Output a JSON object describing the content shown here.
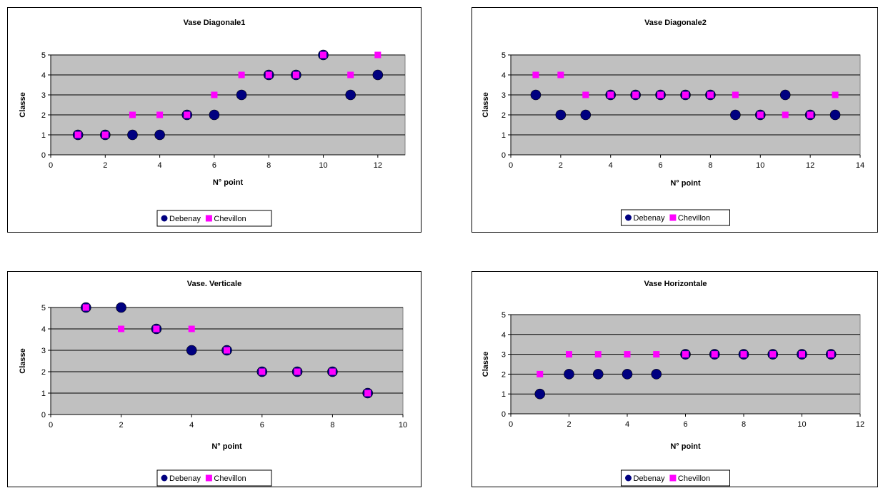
{
  "colors": {
    "plot_bg": "#C0C0C0",
    "series_debenay": "#000080",
    "series_chevillon": "#FF00FF",
    "grid": "#000000"
  },
  "chart_data": [
    {
      "type": "scatter",
      "title": "Vase Diagonale1",
      "xlabel": "N° point",
      "ylabel": "Classe",
      "xlim": [
        0,
        13
      ],
      "ylim": [
        0,
        5
      ],
      "xticks": [
        0,
        2,
        4,
        6,
        8,
        10,
        12
      ],
      "yticks": [
        0,
        1,
        2,
        3,
        4,
        5
      ],
      "grid": "horizontal",
      "legend_position": "bottom",
      "series": [
        {
          "name": "Debenay",
          "marker": "circle",
          "x": [
            1,
            2,
            3,
            4,
            5,
            6,
            7,
            8,
            9,
            10,
            11,
            12
          ],
          "y": [
            1,
            1,
            1,
            1,
            2,
            2,
            3,
            4,
            4,
            5,
            3,
            4
          ]
        },
        {
          "name": "Chevillon",
          "marker": "square",
          "x": [
            1,
            2,
            3,
            4,
            5,
            6,
            7,
            8,
            9,
            10,
            11,
            12
          ],
          "y": [
            1,
            1,
            2,
            2,
            2,
            3,
            4,
            4,
            4,
            5,
            4,
            5
          ]
        }
      ]
    },
    {
      "type": "scatter",
      "title": "Vase Diagonale2",
      "xlabel": "N° point",
      "ylabel": "Classe",
      "xlim": [
        0,
        14
      ],
      "ylim": [
        0,
        5
      ],
      "xticks": [
        0,
        2,
        4,
        6,
        8,
        10,
        12,
        14
      ],
      "yticks": [
        0,
        1,
        2,
        3,
        4,
        5
      ],
      "grid": "horizontal",
      "legend_position": "bottom",
      "series": [
        {
          "name": "Debenay",
          "marker": "circle",
          "x": [
            1,
            2,
            3,
            4,
            5,
            6,
            7,
            8,
            9,
            10,
            11,
            12,
            13
          ],
          "y": [
            3,
            2,
            2,
            3,
            3,
            3,
            3,
            3,
            2,
            2,
            3,
            2,
            2
          ]
        },
        {
          "name": "Chevillon",
          "marker": "square",
          "x": [
            1,
            2,
            3,
            4,
            5,
            6,
            7,
            8,
            9,
            10,
            11,
            12,
            13
          ],
          "y": [
            4,
            4,
            3,
            3,
            3,
            3,
            3,
            3,
            3,
            2,
            2,
            2,
            3
          ]
        }
      ]
    },
    {
      "type": "scatter",
      "title": "Vase. Verticale",
      "xlabel": "N° point",
      "ylabel": "Classe",
      "xlim": [
        0,
        10
      ],
      "ylim": [
        0,
        5
      ],
      "xticks": [
        0,
        2,
        4,
        6,
        8,
        10
      ],
      "yticks": [
        0,
        1,
        2,
        3,
        4,
        5
      ],
      "grid": "horizontal",
      "legend_position": "bottom",
      "series": [
        {
          "name": "Debenay",
          "marker": "circle",
          "x": [
            1,
            2,
            3,
            4,
            5,
            6,
            7,
            8,
            9
          ],
          "y": [
            5,
            5,
            4,
            3,
            3,
            2,
            2,
            2,
            1
          ]
        },
        {
          "name": "Chevillon",
          "marker": "square",
          "x": [
            1,
            2,
            3,
            4,
            5,
            6,
            7,
            8,
            9
          ],
          "y": [
            5,
            4,
            4,
            4,
            3,
            2,
            2,
            2,
            1
          ]
        }
      ]
    },
    {
      "type": "scatter",
      "title": "Vase Horizontale",
      "xlabel": "N° point",
      "ylabel": "Classe",
      "xlim": [
        0,
        12
      ],
      "ylim": [
        0,
        5
      ],
      "xticks": [
        0,
        2,
        4,
        6,
        8,
        10,
        12
      ],
      "yticks": [
        0,
        1,
        2,
        3,
        4,
        5
      ],
      "grid": "horizontal",
      "legend_position": "bottom",
      "series": [
        {
          "name": "Debenay",
          "marker": "circle",
          "x": [
            1,
            2,
            3,
            4,
            5,
            6,
            7,
            8,
            9,
            10,
            11
          ],
          "y": [
            1,
            2,
            2,
            2,
            2,
            3,
            3,
            3,
            3,
            3,
            3
          ]
        },
        {
          "name": "Chevillon",
          "marker": "square",
          "x": [
            1,
            2,
            3,
            4,
            5,
            6,
            7,
            8,
            9,
            10,
            11
          ],
          "y": [
            2,
            3,
            3,
            3,
            3,
            3,
            3,
            3,
            3,
            3,
            3
          ]
        }
      ]
    }
  ]
}
